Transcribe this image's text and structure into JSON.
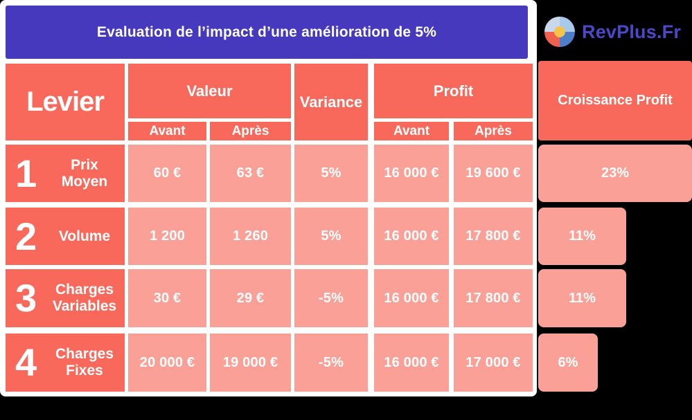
{
  "banner": {
    "title": "Evaluation de l’impact d’une amélioration de 5%",
    "background": "#4639bd"
  },
  "logo": {
    "name": "RevPlus.Fr",
    "icon": "pie-chart-icon",
    "text_color": "#4a48c9"
  },
  "colors": {
    "header_coral": "#f9695b",
    "cell_coral": "#faa096",
    "page_background": "#000000",
    "card_background": "#ffffff"
  },
  "table": {
    "levier_header": "Levier",
    "groups": {
      "valeur": "Valeur",
      "variance": "Variance",
      "profit": "Profit",
      "croissance": "Croissance Profit"
    },
    "sub_headers": {
      "avant": "Avant",
      "apres": "Après"
    },
    "rows": [
      {
        "num": "1",
        "label": "Prix Moyen",
        "valeur_avant": "60 €",
        "valeur_apres": "63 €",
        "variance": "5%",
        "profit_avant": "16 000 €",
        "profit_apres": "19 600 €",
        "croissance": "23%",
        "bar_style": "width:222px"
      },
      {
        "num": "2",
        "label": "Volume",
        "valeur_avant": "1 200",
        "valeur_apres": "1 260",
        "variance": "5%",
        "profit_avant": "16 000 €",
        "profit_apres": "17 800 €",
        "croissance": "11%",
        "bar_style": "width:127px"
      },
      {
        "num": "3",
        "label": "Charges Variables",
        "valeur_avant": "30 €",
        "valeur_apres": "29 €",
        "variance": "-5%",
        "profit_avant": "16 000 €",
        "profit_apres": "17 800 €",
        "croissance": "11%",
        "bar_style": "width:127px"
      },
      {
        "num": "4",
        "label": "Charges Fixes",
        "valeur_avant": "20 000 €",
        "valeur_apres": "19 000 €",
        "variance": "-5%",
        "profit_avant": "16 000 €",
        "profit_apres": "17 000 €",
        "croissance": "6%",
        "bar_style": "width:86px"
      }
    ]
  },
  "chart_data": {
    "type": "table",
    "title": "Evaluation de l’impact d’une amélioration de 5%",
    "columns": [
      "Levier",
      "Valeur Avant",
      "Valeur Après",
      "Variance",
      "Profit Avant",
      "Profit Après",
      "Croissance Profit"
    ],
    "rows": [
      [
        "Prix Moyen",
        "60 €",
        "63 €",
        "5%",
        "16 000 €",
        "19 600 €",
        "23%"
      ],
      [
        "Volume",
        "1 200",
        "1 260",
        "5%",
        "16 000 €",
        "17 800 €",
        "11%"
      ],
      [
        "Charges Variables",
        "30 €",
        "29 €",
        "-5%",
        "16 000 €",
        "17 800 €",
        "11%"
      ],
      [
        "Charges Fixes",
        "20 000 €",
        "19 000 €",
        "-5%",
        "16 000 €",
        "17 000 €",
        "6%"
      ]
    ],
    "bar_series": {
      "name": "Croissance Profit",
      "categories": [
        "Prix Moyen",
        "Volume",
        "Charges Variables",
        "Charges Fixes"
      ],
      "values_pct": [
        23,
        11,
        11,
        6
      ]
    },
    "legend_position": "none",
    "grid": false
  }
}
